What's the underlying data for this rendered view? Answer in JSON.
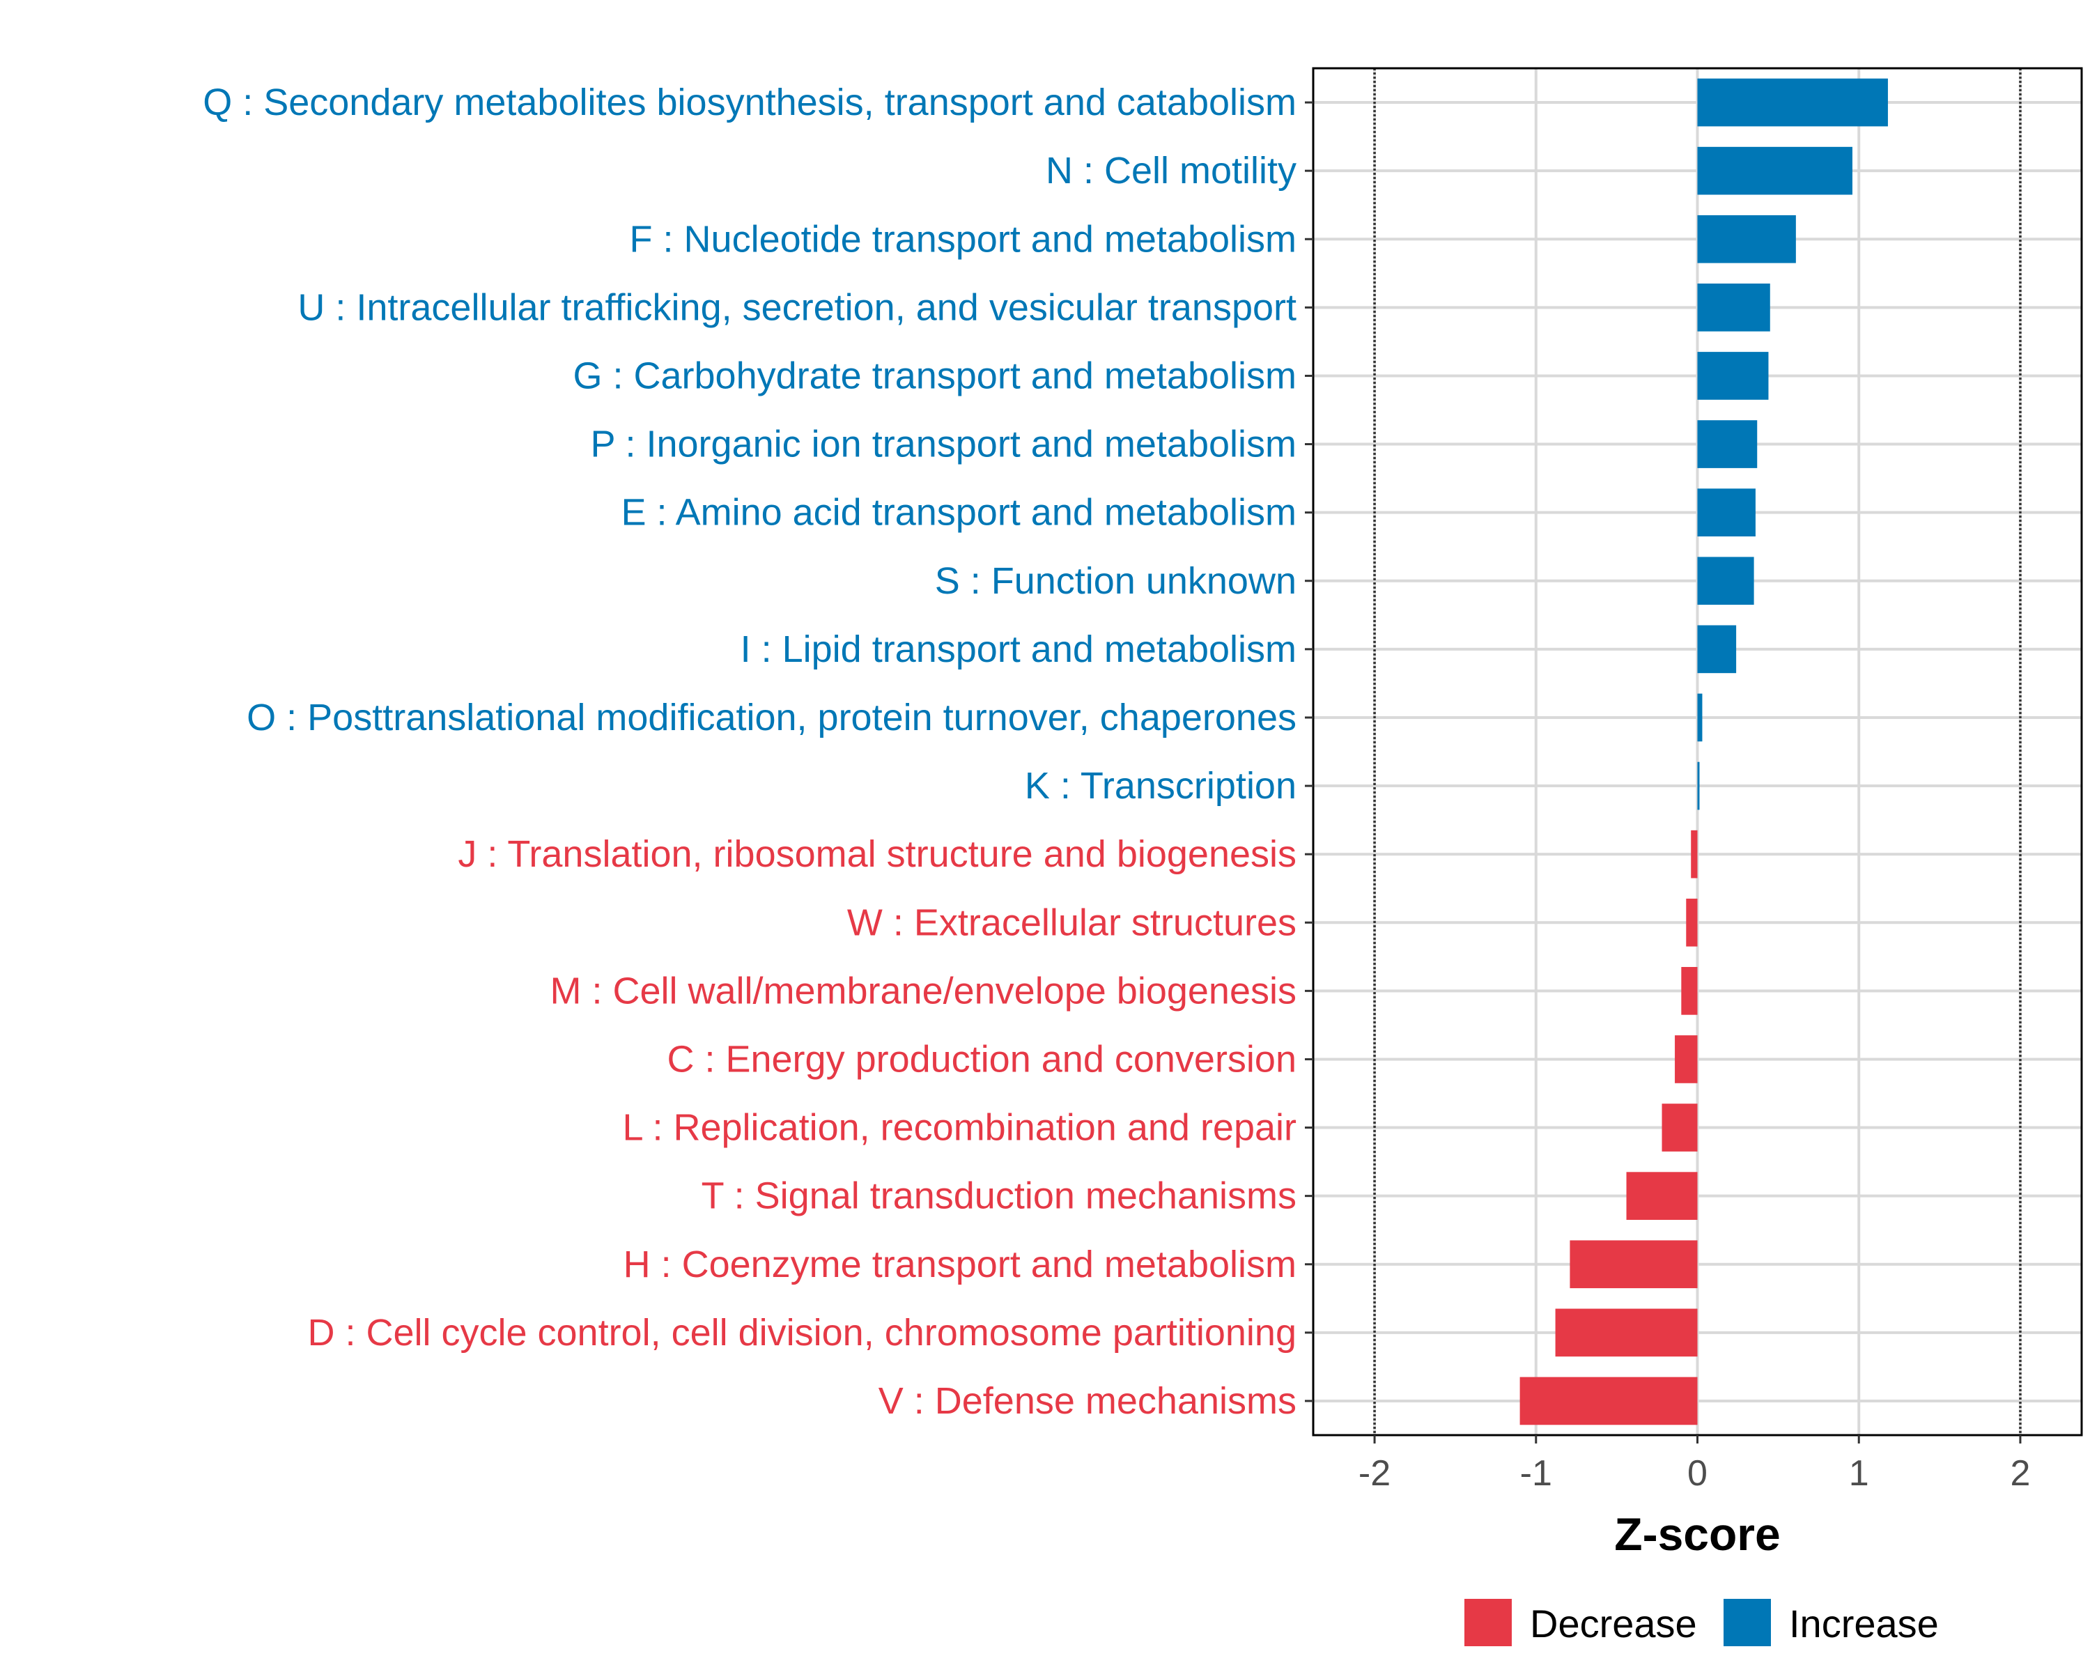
{
  "chart_data": {
    "type": "bar",
    "orientation": "horizontal",
    "title": "",
    "xlabel": "Z-score",
    "ylabel": "",
    "xlim": [
      -2.38,
      2.38
    ],
    "xticks": [
      -2,
      -1,
      0,
      1,
      2
    ],
    "xtick_labels": [
      "-2",
      "-1",
      "0",
      "1",
      "2"
    ],
    "reference_lines": [
      -2,
      2
    ],
    "grid": true,
    "legend_position": "bottom",
    "colors": {
      "Decrease": "#e63946",
      "Increase": "#0077b6"
    },
    "legend": [
      {
        "key": "Decrease",
        "label": "Decrease"
      },
      {
        "key": "Increase",
        "label": "Increase"
      }
    ],
    "categories": [
      "Q : Secondary metabolites biosynthesis, transport and catabolism",
      "N : Cell motility",
      "F : Nucleotide transport and metabolism",
      "U : Intracellular trafficking, secretion, and vesicular transport",
      "G : Carbohydrate transport and metabolism",
      "P : Inorganic ion transport and metabolism",
      "E : Amino acid transport and metabolism",
      "S : Function unknown",
      "I : Lipid transport and metabolism",
      "O : Posttranslational modification, protein turnover, chaperones",
      "K : Transcription",
      "J : Translation, ribosomal structure and biogenesis",
      "W : Extracellular structures",
      "M : Cell wall/membrane/envelope biogenesis",
      "C : Energy production and conversion",
      "L : Replication, recombination and repair",
      "T : Signal transduction mechanisms",
      "H : Coenzyme transport and metabolism",
      "D : Cell cycle control, cell division, chromosome partitioning",
      "V : Defense mechanisms"
    ],
    "values": [
      1.18,
      0.96,
      0.61,
      0.45,
      0.44,
      0.37,
      0.36,
      0.35,
      0.24,
      0.03,
      0.01,
      -0.04,
      -0.07,
      -0.1,
      -0.14,
      -0.22,
      -0.44,
      -0.79,
      -0.88,
      -1.1
    ],
    "groups": [
      "Increase",
      "Increase",
      "Increase",
      "Increase",
      "Increase",
      "Increase",
      "Increase",
      "Increase",
      "Increase",
      "Increase",
      "Increase",
      "Decrease",
      "Decrease",
      "Decrease",
      "Decrease",
      "Decrease",
      "Decrease",
      "Decrease",
      "Decrease",
      "Decrease"
    ]
  }
}
